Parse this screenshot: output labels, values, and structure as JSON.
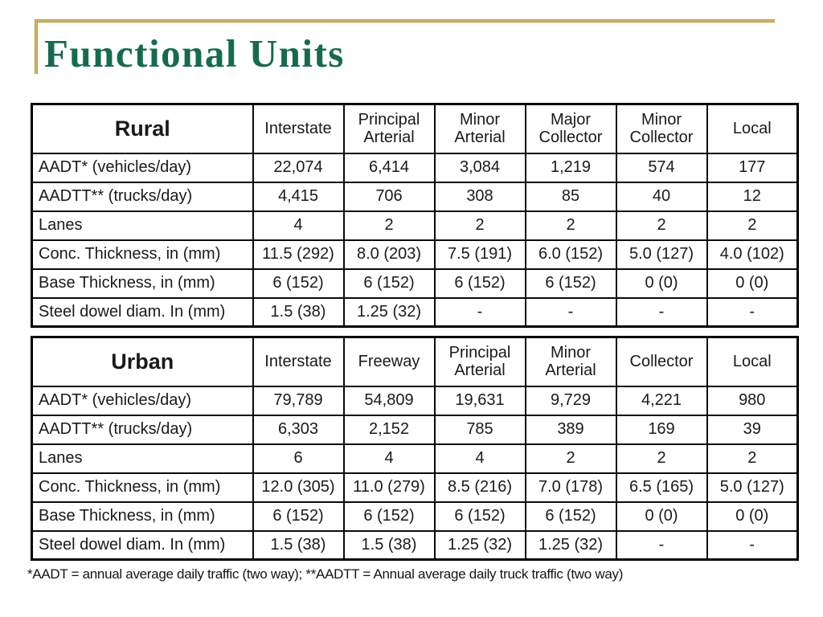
{
  "slide": {
    "title": "Functional Units",
    "footnote": "*AADT = annual average daily traffic (two way); **AADTT = Annual average daily truck traffic (two way)",
    "colors": {
      "title_green": "#156B4E",
      "accent_gold": "#C7A43C",
      "table_border": "#000000",
      "background": "#FFFFFF"
    }
  },
  "tables": [
    {
      "name": "Rural",
      "columns": [
        "Interstate",
        "Principal Arterial",
        "Minor Arterial",
        "Major Collector",
        "Minor Collector",
        "Local"
      ],
      "rows": [
        {
          "label": "AADT* (vehicles/day)",
          "values": [
            "22,074",
            "6,414",
            "3,084",
            "1,219",
            "574",
            "177"
          ]
        },
        {
          "label": "AADTT** (trucks/day)",
          "values": [
            "4,415",
            "706",
            "308",
            "85",
            "40",
            "12"
          ]
        },
        {
          "label": "Lanes",
          "values": [
            "4",
            "2",
            "2",
            "2",
            "2",
            "2"
          ]
        },
        {
          "label": "Conc. Thickness, in (mm)",
          "values": [
            "11.5 (292)",
            "8.0 (203)",
            "7.5 (191)",
            "6.0 (152)",
            "5.0 (127)",
            "4.0 (102)"
          ]
        },
        {
          "label": "Base Thickness, in (mm)",
          "values": [
            "6 (152)",
            "6 (152)",
            "6 (152)",
            "6 (152)",
            "0 (0)",
            "0 (0)"
          ]
        },
        {
          "label": "Steel dowel diam. In (mm)",
          "values": [
            "1.5 (38)",
            "1.25 (32)",
            "-",
            "-",
            "-",
            "-"
          ]
        }
      ]
    },
    {
      "name": "Urban",
      "columns": [
        "Interstate",
        "Freeway",
        "Principal Arterial",
        "Minor Arterial",
        "Collector",
        "Local"
      ],
      "rows": [
        {
          "label": "AADT* (vehicles/day)",
          "values": [
            "79,789",
            "54,809",
            "19,631",
            "9,729",
            "4,221",
            "980"
          ]
        },
        {
          "label": "AADTT** (trucks/day)",
          "values": [
            "6,303",
            "2,152",
            "785",
            "389",
            "169",
            "39"
          ]
        },
        {
          "label": "Lanes",
          "values": [
            "6",
            "4",
            "4",
            "2",
            "2",
            "2"
          ]
        },
        {
          "label": "Conc. Thickness, in (mm)",
          "values": [
            "12.0 (305)",
            "11.0 (279)",
            "8.5 (216)",
            "7.0 (178)",
            "6.5 (165)",
            "5.0 (127)"
          ]
        },
        {
          "label": "Base Thickness, in (mm)",
          "values": [
            "6 (152)",
            "6 (152)",
            "6 (152)",
            "6 (152)",
            "0 (0)",
            "0 (0)"
          ]
        },
        {
          "label": "Steel dowel diam. In (mm)",
          "values": [
            "1.5 (38)",
            "1.5 (38)",
            "1.25 (32)",
            "1.25 (32)",
            "-",
            "-"
          ]
        }
      ]
    }
  ]
}
